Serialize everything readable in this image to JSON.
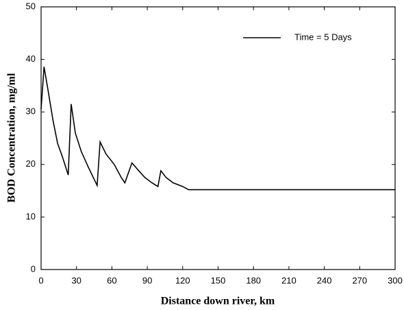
{
  "chart_data": {
    "type": "line",
    "xlabel": "Distance down river, km",
    "ylabel": "BOD Concentration, mg/ml",
    "x": [
      0,
      2.5,
      6,
      10,
      14,
      18,
      23,
      25.5,
      29,
      34,
      40,
      47.5,
      50,
      55,
      62,
      68,
      71,
      77,
      82,
      88,
      94,
      99,
      101.5,
      106,
      112,
      120,
      125,
      300
    ],
    "series": [
      {
        "name": "Time = 5 Days",
        "color": "#000000",
        "values": [
          30.5,
          38.6,
          34,
          28.5,
          24,
          21.5,
          18,
          31.5,
          26,
          22.5,
          19.5,
          16,
          24.3,
          22,
          20,
          17.5,
          16.5,
          20.3,
          19,
          17.5,
          16.5,
          15.8,
          18.8,
          17.5,
          16.5,
          15.8,
          15.2,
          15.2
        ]
      }
    ],
    "xlim": [
      0,
      300
    ],
    "xticks": [
      0,
      30,
      60,
      90,
      120,
      150,
      180,
      210,
      240,
      270,
      300
    ],
    "ylim": [
      0,
      50
    ],
    "yticks": [
      0,
      10,
      20,
      30,
      40,
      50
    ],
    "legend": "upper right"
  }
}
